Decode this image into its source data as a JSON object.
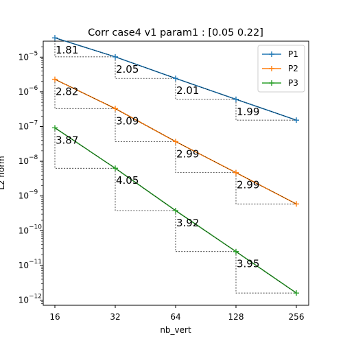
{
  "chart_data": {
    "type": "line",
    "title": "Corr case4 v1 param1 : [0.05 0.22]",
    "xlabel": "nb_vert",
    "ylabel": "L2 norm",
    "xscale": "log2",
    "yscale": "log10",
    "x": [
      16,
      32,
      64,
      128,
      256
    ],
    "xticks": [
      "16",
      "32",
      "64",
      "128",
      "256"
    ],
    "yticks": [
      {
        "exp": -5,
        "label": "10",
        "sup": "−5"
      },
      {
        "exp": -6,
        "label": "10",
        "sup": "−6"
      },
      {
        "exp": -7,
        "label": "10",
        "sup": "−7"
      },
      {
        "exp": -8,
        "label": "10",
        "sup": "−8"
      },
      {
        "exp": -9,
        "label": "10",
        "sup": "−9"
      },
      {
        "exp": -10,
        "label": "10",
        "sup": "−10"
      },
      {
        "exp": -11,
        "label": "10",
        "sup": "−11"
      },
      {
        "exp": -12,
        "label": "10",
        "sup": "−12"
      }
    ],
    "series": [
      {
        "name": "P1",
        "color": "#1f77b4",
        "overlay_color": "#000000",
        "values": [
          3.6e-05,
          1.02e-05,
          2.45e-06,
          6.1e-07,
          1.53e-07
        ],
        "rates": [
          "1.81",
          "2.05",
          "2.01",
          "1.99"
        ]
      },
      {
        "name": "P2",
        "color": "#ff7f0e",
        "overlay_color": "#000000",
        "values": [
          2.3e-06,
          3.3e-07,
          3.7e-08,
          4.7e-09,
          5.9e-10
        ],
        "rates": [
          "2.82",
          "3.09",
          "2.99",
          "2.99"
        ]
      },
      {
        "name": "P3",
        "color": "#2ca02c",
        "overlay_color": "#000000",
        "values": [
          9.2e-08,
          6.3e-09,
          3.8e-10,
          2.5e-11,
          1.6e-12
        ],
        "rates": [
          "3.87",
          "4.05",
          "3.92",
          "3.95"
        ]
      }
    ],
    "legend": {
      "placement": "top-right"
    }
  }
}
